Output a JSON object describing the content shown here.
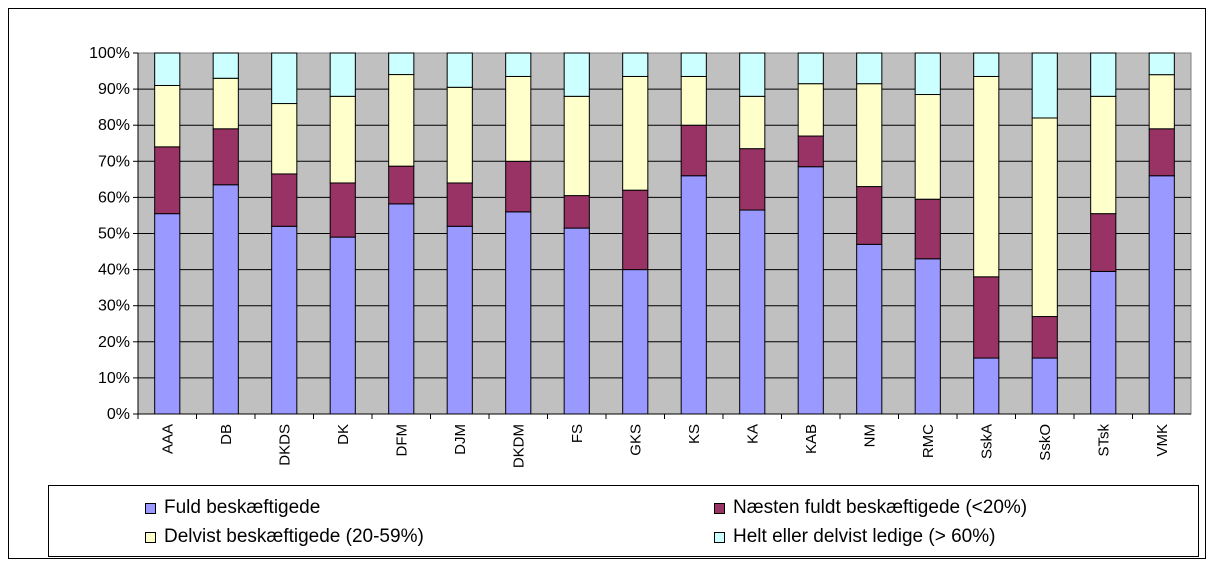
{
  "chart_data": {
    "type": "bar",
    "stacked": true,
    "percent_stacked": true,
    "title": "",
    "xlabel": "",
    "ylabel": "",
    "ylim": [
      0,
      100
    ],
    "yticks": [
      "0%",
      "10%",
      "20%",
      "30%",
      "40%",
      "50%",
      "60%",
      "70%",
      "80%",
      "90%",
      "100%"
    ],
    "categories": [
      "AAA",
      "DB",
      "DKDS",
      "DK",
      "DFM",
      "DJM",
      "DKDM",
      "FS",
      "GKS",
      "KS",
      "KA",
      "KAB",
      "NM",
      "RMC",
      "SskA",
      "SskO",
      "STsk",
      "VMK"
    ],
    "series": [
      {
        "name": "Fuld beskæftigede",
        "color": "#9999ff",
        "values": [
          55.5,
          63.5,
          52,
          49,
          58.5,
          52,
          56,
          51.5,
          40,
          66,
          56.5,
          68.5,
          47,
          43,
          15.5,
          15.5,
          39.5,
          66
        ]
      },
      {
        "name": "Næsten fuldt beskæftigede (<20%)",
        "color": "#993366",
        "values": [
          18.5,
          15.5,
          14.5,
          15,
          10.5,
          12,
          14,
          9,
          22,
          14,
          17,
          8.5,
          16,
          16.5,
          22.5,
          11.5,
          16,
          13
        ]
      },
      {
        "name": "Delvist beskæftigede (20-59%)",
        "color": "#ffffcc",
        "values": [
          17,
          14,
          19.5,
          24,
          25.5,
          26.5,
          23.5,
          27.5,
          31.5,
          13.5,
          14.5,
          14.5,
          28.5,
          29,
          55.5,
          55,
          32.5,
          15
        ]
      },
      {
        "name": "Helt eller delvist ledige (> 60%)",
        "color": "#ccffff",
        "values": [
          9,
          7,
          14,
          12,
          6,
          9.5,
          6.5,
          12,
          6.5,
          6.5,
          12,
          8.5,
          8.5,
          11.5,
          6.5,
          18,
          12,
          6
        ]
      }
    ],
    "grid": true,
    "legend_position": "bottom",
    "plot_background": "#c0c0c0"
  }
}
